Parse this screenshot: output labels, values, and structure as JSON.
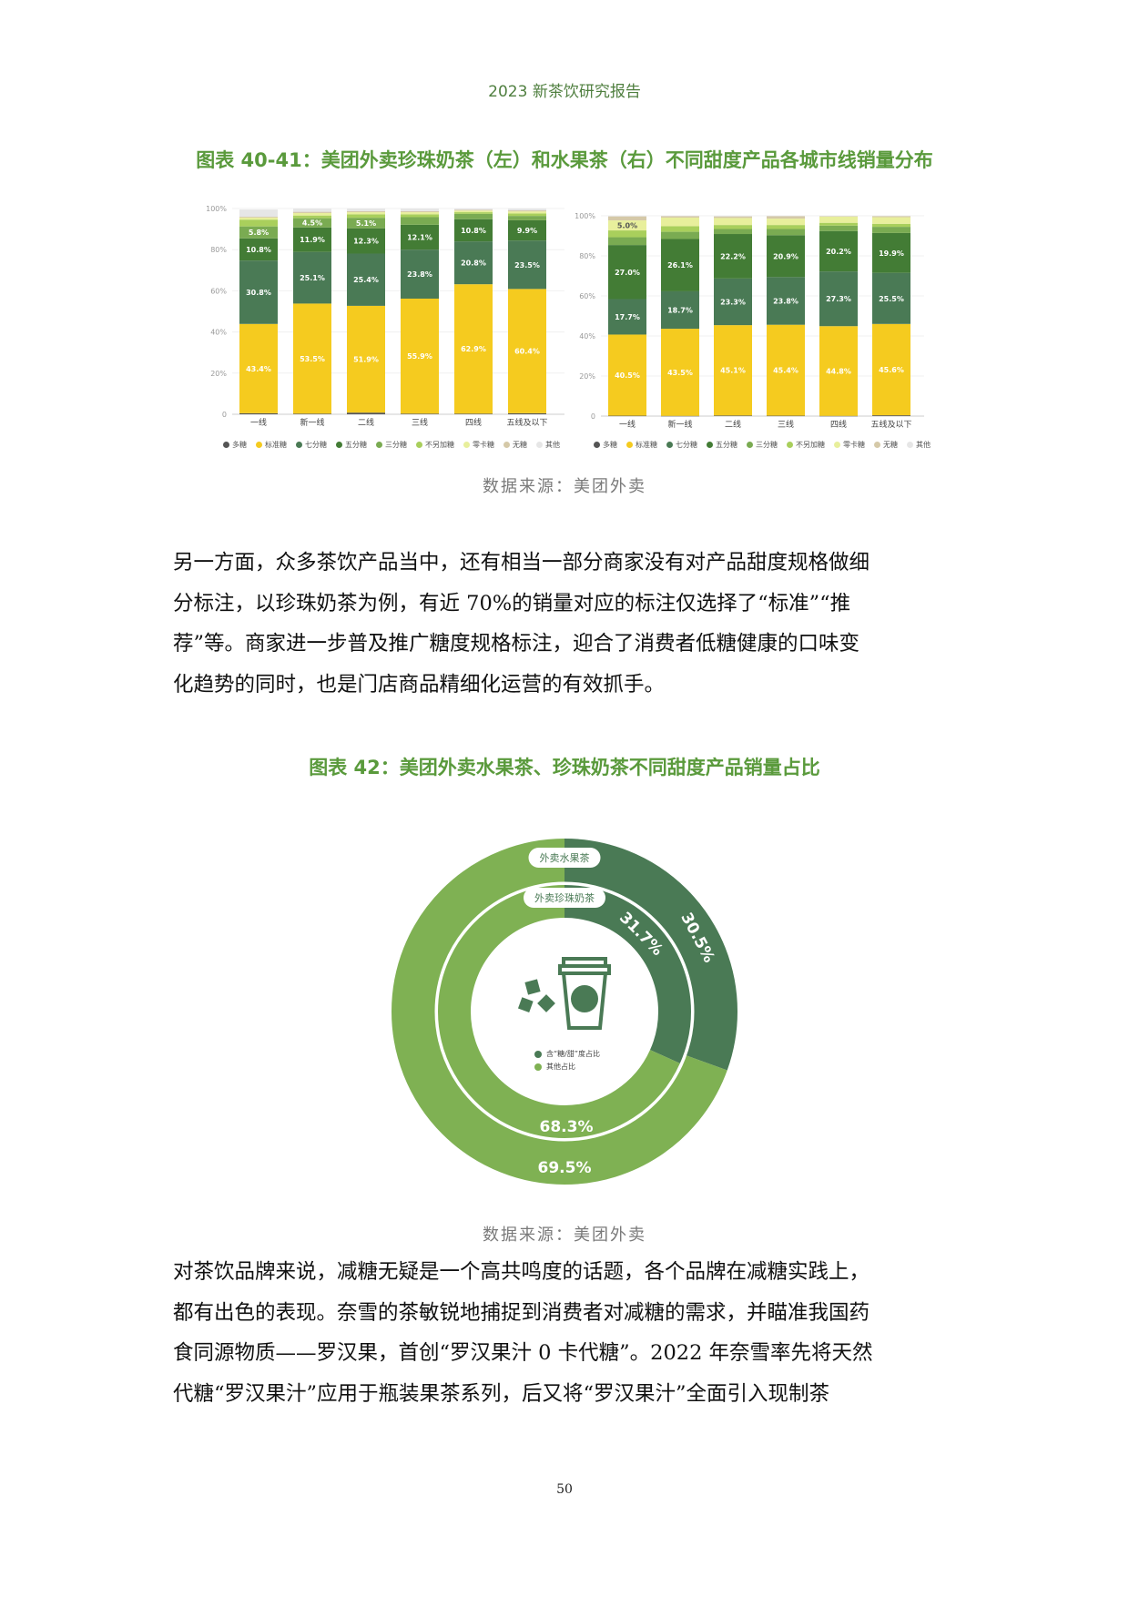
{
  "header": {
    "title": "2023 新茶饮研究报告"
  },
  "figure1": {
    "title": "图表 40-41：美团外卖珍珠奶茶（左）和水果茶（右）不同甜度产品各城市线销量分布",
    "source": "数据来源：美团外卖"
  },
  "paragraph1": [
    "另一方面，众多茶饮产品当中，还有相当一部分商家没有对产品甜度规格做细",
    "分标注，以珍珠奶茶为例，有近 70%的销量对应的标注仅选择了“标准”“推",
    "荐”等。商家进一步普及推广糖度规格标注，迎合了消费者低糖健康的口味变",
    "化趋势的同时，也是门店商品精细化运营的有效抓手。"
  ],
  "figure2": {
    "title": "图表 42：美团外卖水果茶、珍珠奶茶不同甜度产品销量占比",
    "source": "数据来源：美团外卖"
  },
  "paragraph2": [
    "对茶饮品牌来说，减糖无疑是一个高共鸣度的话题，各个品牌在减糖实践上，",
    "都有出色的表现。奈雪的茶敏锐地捕捉到消费者对减糖的需求，并瞄准我国药",
    "食同源物质——罗汉果，首创“罗汉果汁 0 卡代糖”。2022 年奈雪率先将天然",
    "代糖“罗汉果汁”应用于瓶装果茶系列，后又将“罗汉果汁”全面引入现制茶"
  ],
  "page_number": "50",
  "chart_data": [
    {
      "type": "bar",
      "stacked": true,
      "title": "美团外卖珍珠奶茶",
      "categories": [
        "一线",
        "新一线",
        "二线",
        "三线",
        "四线",
        "五线及以下"
      ],
      "yticks": [
        "0",
        "20%",
        "40%",
        "60%",
        "80%",
        "100%"
      ],
      "ylim": [
        0,
        100
      ],
      "legend_position": "bottom",
      "labeled_series": [
        1,
        2,
        3,
        4,
        5
      ],
      "series": [
        {
          "name": "多糖",
          "color": "#555555",
          "values": [
            0.5,
            0.3,
            0.8,
            0.3,
            0.3,
            0.5
          ]
        },
        {
          "name": "标准糖",
          "color": "#f5cb1f",
          "values": [
            43.4,
            53.5,
            51.9,
            55.9,
            62.9,
            60.4
          ]
        },
        {
          "name": "七分糖",
          "color": "#4a7a55",
          "values": [
            30.8,
            25.1,
            25.4,
            23.8,
            20.8,
            23.5
          ]
        },
        {
          "name": "五分糖",
          "color": "#437c35",
          "values": [
            10.8,
            11.9,
            12.3,
            12.1,
            10.8,
            9.9
          ]
        },
        {
          "name": "三分糖",
          "color": "#7aab52",
          "values": [
            5.8,
            4.5,
            5.1,
            3.7,
            2.6,
            2.1
          ]
        },
        {
          "name": "不另加糖",
          "color": "#a9cf5c",
          "values": [
            3.3,
            1.3,
            1.7,
            1.4,
            0.8,
            1.2
          ]
        },
        {
          "name": "零卡糖",
          "color": "#e8ef9c",
          "values": [
            1.0,
            1.2,
            1.0,
            1.0,
            0.8,
            1.0
          ]
        },
        {
          "name": "无糖",
          "color": "#d5c9a8",
          "values": [
            0.4,
            0.6,
            0.5,
            0.5,
            0.4,
            0.5
          ]
        },
        {
          "name": "其他",
          "color": "#e6e6e6",
          "values": [
            3.5,
            1.6,
            1.3,
            1.3,
            0.6,
            0.9
          ]
        }
      ]
    },
    {
      "type": "bar",
      "stacked": true,
      "title": "美团外卖水果茶",
      "categories": [
        "一线",
        "新一线",
        "二线",
        "三线",
        "四线",
        "五线及以下"
      ],
      "yticks": [
        "0",
        "20%",
        "40%",
        "60%",
        "80%",
        "100%"
      ],
      "ylim": [
        0,
        100
      ],
      "legend_position": "bottom",
      "labeled_series": [
        1,
        2,
        3,
        4,
        5,
        6
      ],
      "series": [
        {
          "name": "多糖",
          "color": "#555555",
          "values": [
            0.2,
            0.1,
            0.3,
            0.2,
            0.1,
            0.4
          ]
        },
        {
          "name": "标准糖",
          "color": "#f5cb1f",
          "values": [
            40.5,
            43.5,
            45.1,
            45.4,
            44.8,
            45.6
          ]
        },
        {
          "name": "七分糖",
          "color": "#4a7a55",
          "values": [
            17.7,
            18.7,
            23.3,
            23.8,
            27.3,
            25.5
          ]
        },
        {
          "name": "五分糖",
          "color": "#437c35",
          "values": [
            27.0,
            26.1,
            22.2,
            20.9,
            20.2,
            19.9
          ]
        },
        {
          "name": "三分糖",
          "color": "#7aab52",
          "values": [
            3.9,
            3.6,
            2.5,
            3.1,
            2.7,
            3.1
          ]
        },
        {
          "name": "不另加糖",
          "color": "#a9cf5c",
          "values": [
            3.4,
            2.8,
            2.0,
            2.0,
            1.4,
            1.5
          ]
        },
        {
          "name": "零卡糖",
          "color": "#e8ef9c",
          "values": [
            5.0,
            4.3,
            3.5,
            3.2,
            3.1,
            3.3
          ]
        },
        {
          "name": "无糖",
          "color": "#d5c9a8",
          "values": [
            2.0,
            0.7,
            0.8,
            1.2,
            0.3,
            0.5
          ]
        },
        {
          "name": "其他",
          "color": "#e6e6e6",
          "values": [
            0.3,
            0.2,
            0.3,
            0.2,
            0.1,
            0.2
          ]
        }
      ]
    },
    {
      "type": "pie",
      "donut": true,
      "title": "美团外卖水果茶、珍珠奶茶不同甜度产品销量占比",
      "legend": [
        {
          "name": "含“糖/甜”度占比",
          "color": "#4a7a55"
        },
        {
          "name": "其他占比",
          "color": "#7fb153"
        }
      ],
      "rings": [
        {
          "name": "外卖水果茶",
          "values": [
            30.5,
            69.5
          ],
          "labels": [
            "30.5%",
            "69.5%"
          ]
        },
        {
          "name": "外卖珍珠奶茶",
          "values": [
            31.7,
            68.3
          ],
          "labels": [
            "31.7%",
            "68.3%"
          ]
        }
      ]
    }
  ]
}
